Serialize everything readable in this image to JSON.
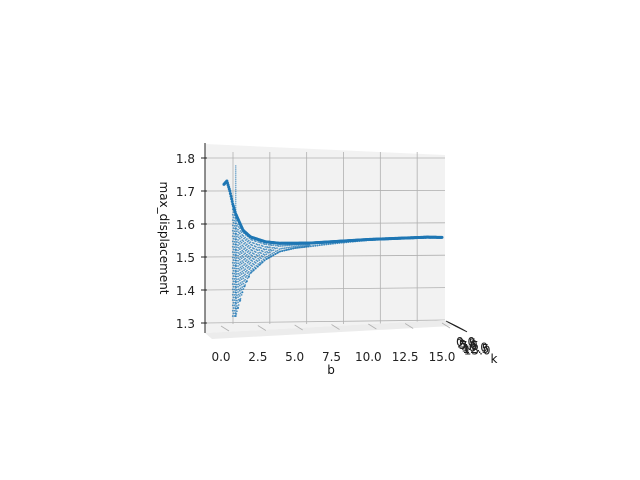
{
  "chart_data": {
    "type": "scatter",
    "projection": "3d",
    "view": "side view, looking along the k axis",
    "xlabel": "b",
    "ylabel": "k",
    "zlabel": "max_displacement",
    "xlim": [
      0.0,
      15.0
    ],
    "zlim": [
      1.3,
      1.8
    ],
    "x_ticks": [
      "0.0",
      "2.5",
      "5.0",
      "7.5",
      "10.0",
      "12.5",
      "15.0"
    ],
    "y_ticks": [
      "0.0",
      "2.5",
      "5.0",
      "7.5",
      "10.0",
      "12.5",
      "15.0"
    ],
    "z_ticks": [
      "1.3",
      "1.4",
      "1.5",
      "1.6",
      "1.7",
      "1.8"
    ],
    "grid": true,
    "series_color": "#1f77b4",
    "envelope_upper": [
      {
        "b": 0.2,
        "z": 1.72
      },
      {
        "b": 0.4,
        "z": 1.73
      },
      {
        "b": 0.6,
        "z": 1.7
      },
      {
        "b": 0.8,
        "z": 1.66
      },
      {
        "b": 1.0,
        "z": 1.63
      },
      {
        "b": 1.5,
        "z": 1.58
      },
      {
        "b": 2.0,
        "z": 1.56
      },
      {
        "b": 3.0,
        "z": 1.545
      },
      {
        "b": 4.0,
        "z": 1.54
      },
      {
        "b": 6.0,
        "z": 1.54
      },
      {
        "b": 8.0,
        "z": 1.545
      },
      {
        "b": 10.0,
        "z": 1.55
      },
      {
        "b": 12.0,
        "z": 1.553
      },
      {
        "b": 14.0,
        "z": 1.556
      },
      {
        "b": 15.0,
        "z": 1.555
      }
    ],
    "envelope_lower": [
      {
        "b": 1.0,
        "z": 1.32
      },
      {
        "b": 1.5,
        "z": 1.4
      },
      {
        "b": 2.0,
        "z": 1.45
      },
      {
        "b": 3.0,
        "z": 1.49
      },
      {
        "b": 4.0,
        "z": 1.515
      },
      {
        "b": 5.0,
        "z": 1.525
      },
      {
        "b": 6.0,
        "z": 1.53
      },
      {
        "b": 8.0,
        "z": 1.54
      },
      {
        "b": 10.0,
        "z": 1.548
      },
      {
        "b": 12.0,
        "z": 1.552
      },
      {
        "b": 15.0,
        "z": 1.555
      }
    ],
    "spike": {
      "b": 1.0,
      "z_min": 1.32,
      "z_max": 1.78
    }
  }
}
